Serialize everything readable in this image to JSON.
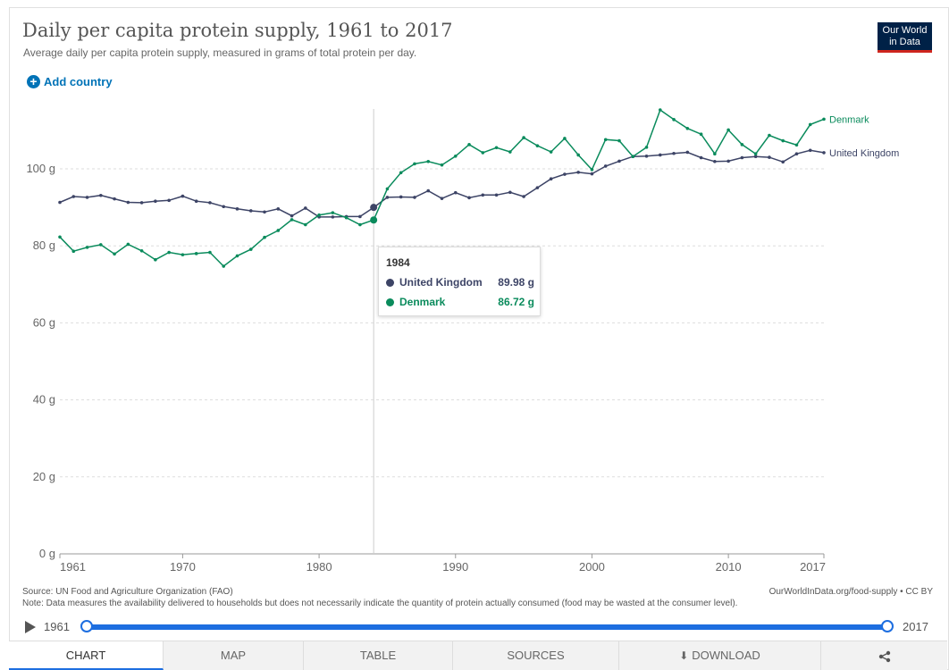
{
  "header": {
    "title": "Daily per capita protein supply, 1961 to 2017",
    "subtitle": "Average daily per capita protein supply, measured in grams of total protein per day.",
    "logo_line1": "Our World",
    "logo_line2": "in Data",
    "add_country": "Add country"
  },
  "tooltip": {
    "year": "1984",
    "rows": [
      {
        "name": "United Kingdom",
        "value": "89.98 g",
        "color": "#3d4466"
      },
      {
        "name": "Denmark",
        "value": "86.72 g",
        "color": "#0a8b5c"
      }
    ]
  },
  "chart_data": {
    "type": "line",
    "title": "Daily per capita protein supply, 1961 to 2017",
    "subtitle": "Average daily per capita protein supply, measured in grams of total protein per day.",
    "ylim": [
      0,
      120
    ],
    "xlim": [
      1961,
      2017
    ],
    "y_ticks": [
      0,
      20,
      40,
      60,
      80,
      100
    ],
    "y_tick_labels": [
      "0 g",
      "20 g",
      "40 g",
      "60 g",
      "80 g",
      "100 g"
    ],
    "x_tick_labels": [
      "1961",
      "1970",
      "1980",
      "1990",
      "2000",
      "2010",
      "2017"
    ],
    "x_ticks": [
      1961,
      1970,
      1980,
      1990,
      2000,
      2010,
      2017
    ],
    "grid": true,
    "legend": "end-of-line labels",
    "highlight_year": 1984,
    "x": [
      1961,
      1962,
      1963,
      1964,
      1965,
      1966,
      1967,
      1968,
      1969,
      1970,
      1971,
      1972,
      1973,
      1974,
      1975,
      1976,
      1977,
      1978,
      1979,
      1980,
      1981,
      1982,
      1983,
      1984,
      1985,
      1986,
      1987,
      1988,
      1989,
      1990,
      1991,
      1992,
      1993,
      1994,
      1995,
      1996,
      1997,
      1998,
      1999,
      2000,
      2001,
      2002,
      2003,
      2004,
      2005,
      2006,
      2007,
      2008,
      2009,
      2010,
      2011,
      2012,
      2013,
      2014,
      2015,
      2016,
      2017
    ],
    "series": [
      {
        "name": "United Kingdom",
        "color": "#3d4466",
        "values": [
          91.3,
          92.8,
          92.6,
          93.1,
          92.2,
          91.3,
          91.2,
          91.6,
          91.8,
          92.9,
          91.6,
          91.2,
          90.2,
          89.6,
          89.1,
          88.8,
          89.6,
          87.8,
          89.8,
          87.5,
          87.5,
          87.6,
          87.6,
          89.98,
          92.6,
          92.7,
          92.6,
          94.3,
          92.3,
          93.8,
          92.5,
          93.2,
          93.2,
          93.9,
          92.8,
          95.1,
          97.4,
          98.6,
          99.1,
          98.7,
          100.7,
          102.0,
          103.2,
          103.3,
          103.6,
          104.0,
          104.3,
          102.9,
          101.9,
          102.0,
          102.9,
          103.2,
          103.0,
          101.8,
          103.9,
          104.8,
          104.2
        ]
      },
      {
        "name": "Denmark",
        "color": "#0a8b5c",
        "values": [
          82.3,
          78.6,
          79.6,
          80.3,
          77.9,
          80.4,
          78.7,
          76.4,
          78.3,
          77.7,
          78.0,
          78.3,
          74.7,
          77.4,
          79.1,
          82.2,
          84.0,
          86.8,
          85.5,
          88.0,
          88.6,
          87.3,
          85.5,
          86.72,
          94.8,
          99.0,
          101.3,
          101.9,
          101.0,
          103.3,
          106.3,
          104.2,
          105.5,
          104.4,
          108.1,
          106.0,
          104.4,
          107.9,
          103.6,
          99.8,
          107.6,
          107.3,
          103.2,
          105.6,
          115.3,
          112.8,
          110.5,
          109.0,
          103.9,
          110.1,
          106.3,
          103.9,
          108.7,
          107.3,
          106.2,
          111.5,
          112.9
        ]
      }
    ]
  },
  "footer": {
    "source": "Source: UN Food and Agriculture Organization (FAO)",
    "note": "Note: Data measures the availability delivered to households but does not necessarily indicate the quantity of protein actually consumed (food may be wasted at the consumer level).",
    "url": "OurWorldInData.org/food-supply • CC BY"
  },
  "timeline": {
    "start": "1961",
    "end": "2017"
  },
  "tabs": [
    {
      "label": "CHART",
      "active": true
    },
    {
      "label": "MAP"
    },
    {
      "label": "TABLE"
    },
    {
      "label": "SOURCES"
    },
    {
      "label": "DOWNLOAD"
    },
    {
      "label": "",
      "icon": "share-icon"
    }
  ]
}
